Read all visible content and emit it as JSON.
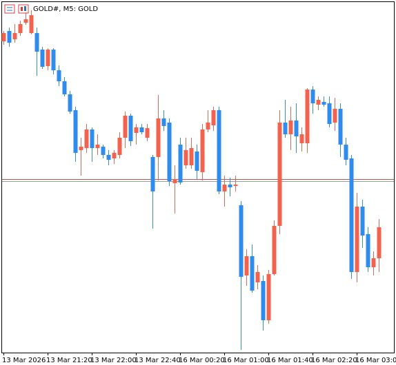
{
  "chart_data": {
    "type": "candlestick",
    "title": "GOLD#, M5:  GOLD",
    "categories": [
      "13 Mar 2026",
      null,
      null,
      null,
      null,
      null,
      null,
      null,
      "13 Mar 21:20",
      null,
      null,
      null,
      null,
      null,
      null,
      null,
      "13 Mar 22:00",
      null,
      null,
      null,
      null,
      null,
      null,
      null,
      "13 Mar 22:40",
      null,
      null,
      null,
      null,
      null,
      null,
      null,
      "16 Mar 00:20",
      null,
      null,
      null,
      null,
      null,
      null,
      null,
      "16 Mar 01:00",
      null,
      null,
      null,
      null,
      null,
      null,
      null,
      "16 Mar 01:40",
      null,
      null,
      null,
      null,
      null,
      null,
      null,
      "16 Mar 02:20",
      null,
      null,
      null,
      null,
      null,
      null,
      null,
      "16 Mar 03:00",
      null,
      null,
      null,
      null
    ],
    "open": [
      450,
      465,
      453,
      462,
      477,
      462,
      462,
      438,
      414,
      438,
      408,
      392,
      373,
      350,
      292,
      295,
      322,
      295,
      297,
      285,
      280,
      285,
      310,
      342,
      317,
      325,
      310,
      282,
      282,
      338,
      332,
      244,
      300,
      270,
      270,
      290,
      260,
      322,
      328,
      350,
      232,
      242,
      240,
      212,
      110,
      138,
      100,
      102,
      45,
      112,
      182,
      332,
      315,
      335,
      302,
      302,
      380,
      358,
      362,
      360,
      332,
      352,
      300,
      280,
      115,
      210,
      170,
      122,
      135
    ],
    "high": [
      465,
      470,
      475,
      480,
      492,
      495,
      470,
      442,
      440,
      440,
      415,
      398,
      378,
      355,
      310,
      330,
      325,
      315,
      300,
      292,
      292,
      318,
      348,
      345,
      330,
      330,
      330,
      285,
      372,
      350,
      338,
      270,
      310,
      310,
      310,
      300,
      330,
      350,
      355,
      355,
      255,
      252,
      255,
      218,
      148,
      155,
      125,
      110,
      118,
      190,
      350,
      365,
      355,
      360,
      325,
      382,
      385,
      370,
      370,
      370,
      368,
      360,
      310,
      285,
      230,
      220,
      180,
      145,
      192
    ],
    "low": [
      445,
      442,
      448,
      458,
      474,
      460,
      400,
      410,
      408,
      402,
      385,
      370,
      345,
      275,
      255,
      288,
      275,
      285,
      280,
      270,
      272,
      280,
      295,
      298,
      300,
      315,
      305,
      178,
      248,
      320,
      240,
      200,
      242,
      265,
      265,
      250,
      248,
      318,
      320,
      228,
      210,
      225,
      232,
      2,
      95,
      85,
      90,
      30,
      40,
      110,
      170,
      310,
      292,
      288,
      290,
      288,
      345,
      350,
      355,
      325,
      320,
      282,
      270,
      105,
      100,
      150,
      115,
      110,
      115
    ],
    "close": [
      462,
      448,
      462,
      475,
      482,
      488,
      435,
      413,
      438,
      408,
      392,
      373,
      348,
      288,
      297,
      322,
      295,
      300,
      285,
      278,
      288,
      310,
      342,
      305,
      325,
      318,
      324,
      232,
      338,
      327,
      247,
      250,
      245,
      292,
      295,
      262,
      322,
      332,
      350,
      232,
      242,
      238,
      242,
      108,
      138,
      88,
      115,
      45,
      112,
      182,
      332,
      315,
      335,
      312,
      315,
      380,
      360,
      365,
      358,
      330,
      352,
      300,
      278,
      115,
      210,
      168,
      122,
      135,
      180
    ],
    "bull_color": "#f0634f",
    "bear_color": "#2f8ceb",
    "ylim": [
      0,
      510
    ],
    "price_lines": [
      {
        "value": 250,
        "color": "#b4574d"
      },
      {
        "value": 247,
        "color": "#9a9a9a"
      }
    ]
  }
}
